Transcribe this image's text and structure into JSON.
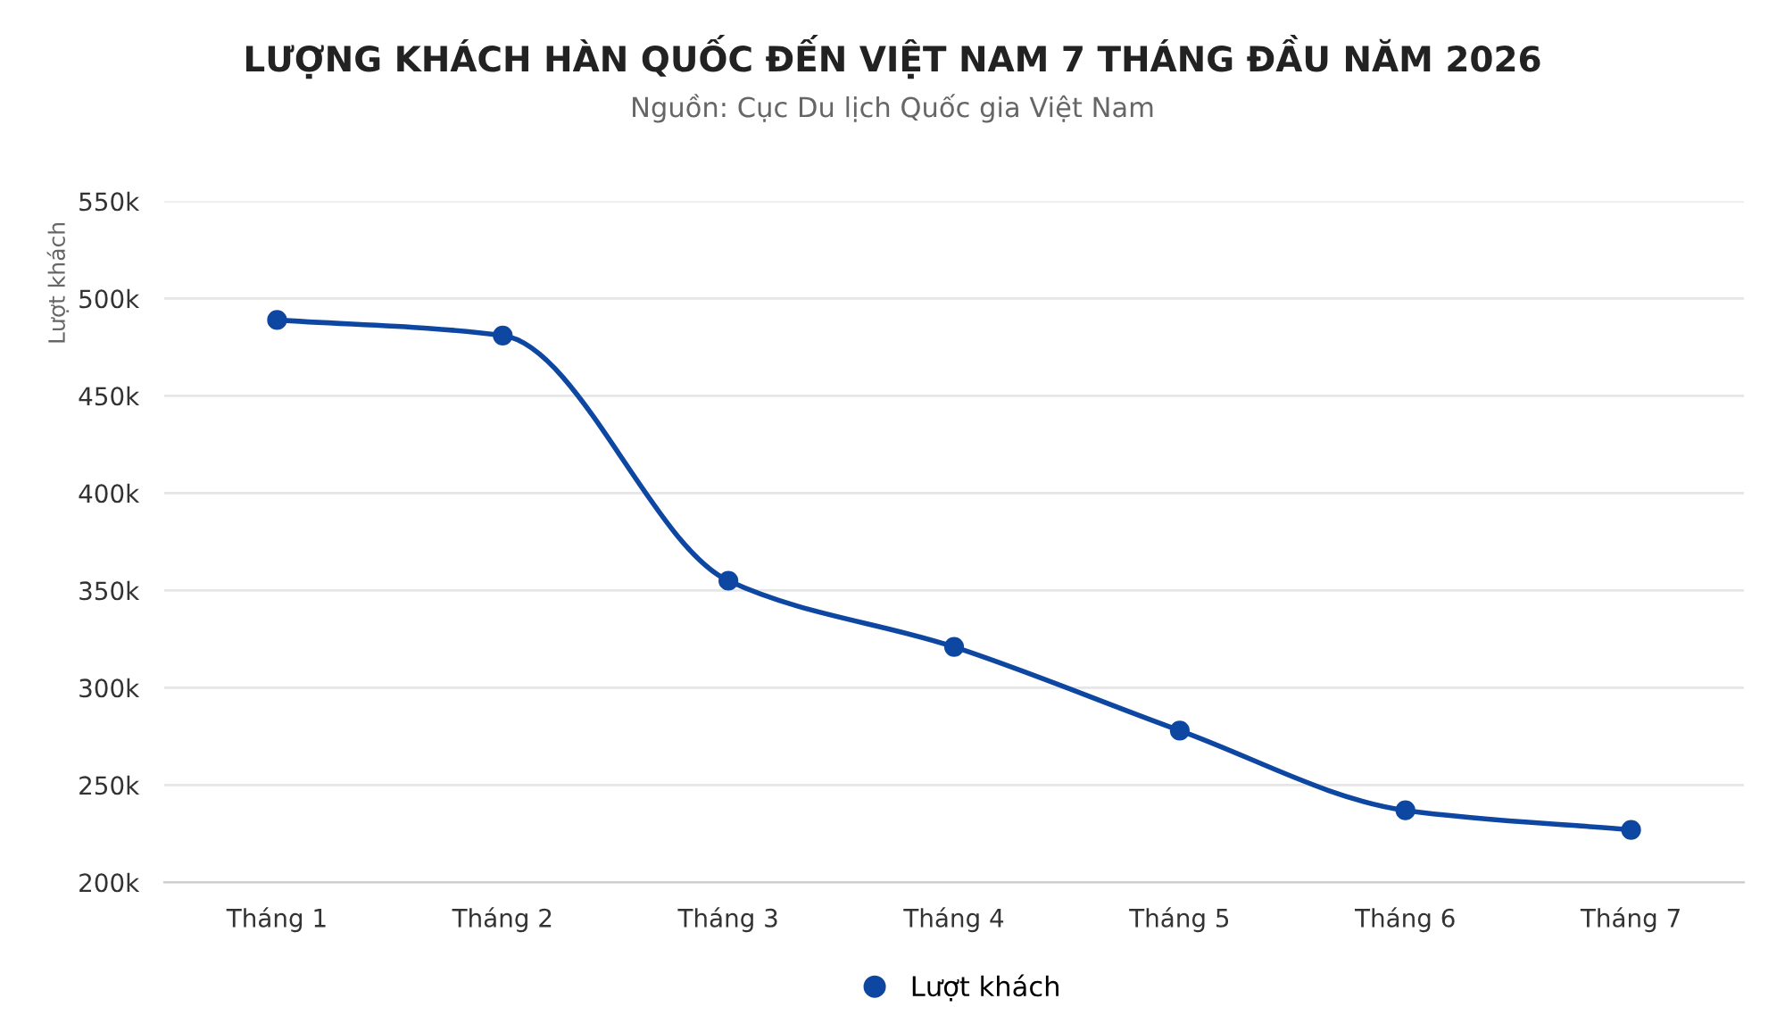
{
  "chart_data": {
    "type": "line",
    "title": "LƯỢNG KHÁCH HÀN QUỐC ĐẾN VIỆT NAM 7 THÁNG ĐẦU NĂM 2026",
    "subtitle": "Nguồn: Cục Du lịch Quốc gia Việt Nam",
    "ylabel": "Lượt khách",
    "categories": [
      "Tháng 1",
      "Tháng 2",
      "Tháng 3",
      "Tháng 4",
      "Tháng 5",
      "Tháng 6",
      "Tháng 7"
    ],
    "series": [
      {
        "name": "Lượt khách",
        "color": "#0d47a1",
        "values": [
          489000,
          481000,
          355000,
          321000,
          278000,
          237000,
          227000
        ]
      }
    ],
    "ylim": [
      200000,
      550000
    ],
    "yticks": [
      {
        "value": 200000,
        "label": "200k"
      },
      {
        "value": 250000,
        "label": "250k"
      },
      {
        "value": 300000,
        "label": "300k"
      },
      {
        "value": 350000,
        "label": "350k"
      },
      {
        "value": 400000,
        "label": "400k"
      },
      {
        "value": 450000,
        "label": "450k"
      },
      {
        "value": 500000,
        "label": "500k"
      },
      {
        "value": 550000,
        "label": "550k"
      }
    ],
    "grid": "y",
    "legend": "bottom",
    "marker": "circle",
    "line_style": "solid"
  }
}
